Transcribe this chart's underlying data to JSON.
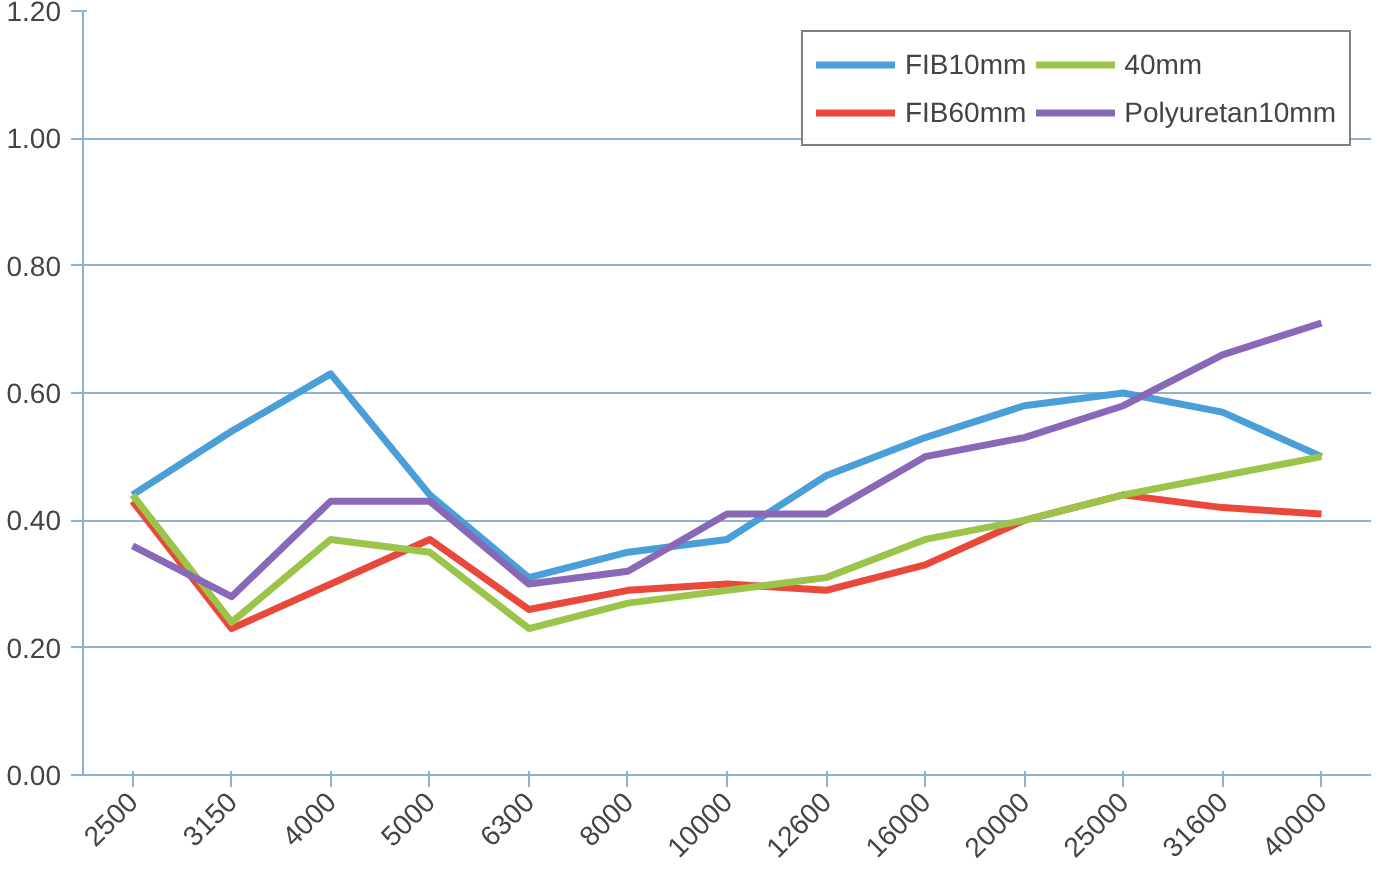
{
  "chart_data": {
    "type": "line",
    "categories": [
      "2500",
      "3150",
      "4000",
      "5000",
      "6300",
      "8000",
      "10000",
      "12600",
      "16000",
      "20000",
      "25000",
      "31600",
      "40000"
    ],
    "series": [
      {
        "name": "FIB10mm",
        "color": "#4a9fd8",
        "values": [
          0.44,
          0.54,
          0.63,
          0.44,
          0.31,
          0.35,
          0.37,
          0.47,
          0.53,
          0.58,
          0.6,
          0.57,
          0.5
        ]
      },
      {
        "name": "FIB60mm",
        "color": "#e8493a",
        "values": [
          0.43,
          0.23,
          0.3,
          0.37,
          0.26,
          0.29,
          0.3,
          0.29,
          0.33,
          0.4,
          0.44,
          0.42,
          0.41
        ]
      },
      {
        "name": "40mm",
        "color": "#9bc54a",
        "values": [
          0.44,
          0.24,
          0.37,
          0.35,
          0.23,
          0.27,
          0.29,
          0.31,
          0.37,
          0.4,
          0.44,
          0.47,
          0.5
        ]
      },
      {
        "name": "Polyuretan10mm",
        "color": "#8a68b8",
        "values": [
          0.36,
          0.28,
          0.43,
          0.43,
          0.3,
          0.32,
          0.41,
          0.41,
          0.5,
          0.53,
          0.58,
          0.66,
          0.71
        ]
      }
    ],
    "ylim": [
      0,
      1.2
    ],
    "yticks": [
      {
        "value": 0,
        "label": "0.00"
      },
      {
        "value": 0.2,
        "label": "0.20"
      },
      {
        "value": 0.4,
        "label": "0.40"
      },
      {
        "value": 0.6,
        "label": "0.60"
      },
      {
        "value": 0.8,
        "label": "0.80"
      },
      {
        "value": 1.0,
        "label": "1.00"
      },
      {
        "value": 1.2,
        "label": "1.20"
      }
    ],
    "grid": "y",
    "legend": "top right",
    "marker": "none",
    "line_style": "solid"
  }
}
